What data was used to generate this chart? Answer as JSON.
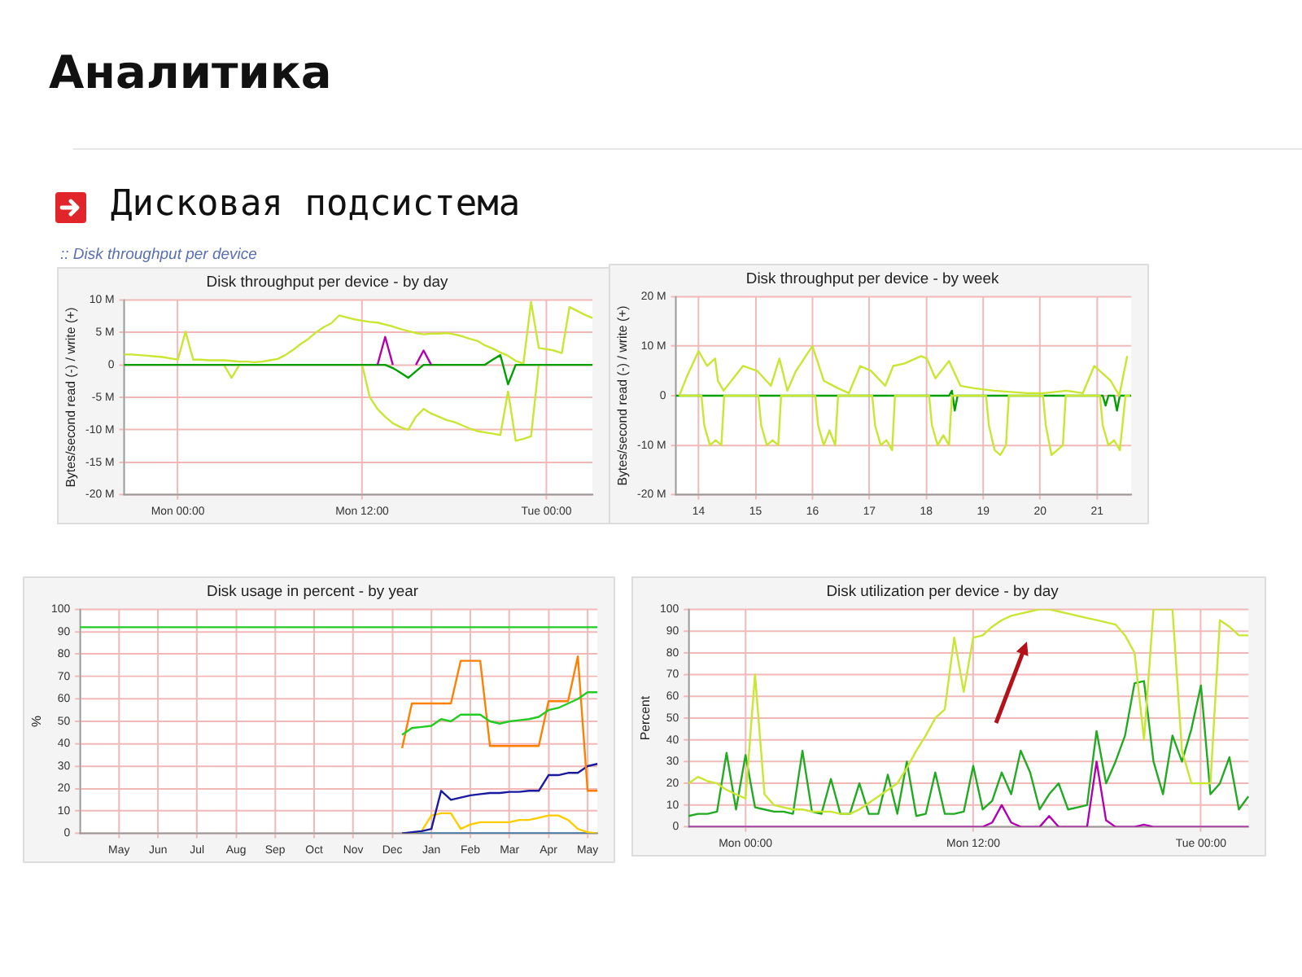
{
  "chart_data": [
    {
      "type": "other",
      "title": "Аналитика",
      "subtitle": "Дисковая подсистема"
    },
    {
      "type": "line",
      "title": "Disk throughput per device - by day",
      "subtitle": ":: Disk throughput per device",
      "ylabel": "Bytes/second read (-) / write (+)",
      "grid": true,
      "categories": [
        null,
        null,
        null,
        null,
        null,
        null,
        null,
        "Mon 00:00",
        null,
        null,
        null,
        null,
        null,
        null,
        null,
        null,
        null,
        null,
        null,
        null,
        null,
        null,
        null,
        null,
        null,
        null,
        null,
        null,
        null,
        null,
        null,
        "Mon 12:00",
        null,
        null,
        null,
        null,
        null,
        null,
        null,
        null,
        null,
        null,
        null,
        null,
        null,
        null,
        null,
        null,
        null,
        null,
        null,
        null,
        null,
        null,
        null,
        "Tue 00:00",
        null,
        null,
        null,
        null,
        null,
        null
      ],
      "ylim": [
        -20,
        10
      ],
      "yticks": [
        {
          "value": -20,
          "label": "-20 M"
        },
        {
          "value": -15,
          "label": "-15 M"
        },
        {
          "value": -10,
          "label": "-10 M"
        },
        {
          "value": -5,
          "label": "-5 M"
        },
        0,
        {
          "value": 5,
          "label": "5 M"
        },
        {
          "value": 10,
          "label": "10 M"
        }
      ],
      "series": [
        {
          "color": "#b000b0",
          "values": [
            null,
            null,
            null,
            null,
            null,
            null,
            null,
            null,
            null,
            null,
            null,
            null,
            null,
            null,
            null,
            null,
            null,
            null,
            null,
            null,
            null,
            null,
            null,
            null,
            null,
            null,
            null,
            null,
            null,
            null,
            null,
            null,
            null,
            0,
            4.3,
            0,
            null,
            null,
            0,
            2.2,
            0,
            null,
            null,
            null,
            null,
            null,
            null,
            null,
            null,
            null,
            null,
            null,
            null,
            null,
            null,
            null,
            null,
            null,
            null,
            null,
            null,
            null
          ]
        },
        {
          "color": "#00a000",
          "values": [
            0,
            0,
            0,
            0,
            0,
            0,
            0,
            0,
            0,
            0,
            0,
            0,
            0,
            0,
            0,
            0,
            0,
            0,
            0,
            0,
            0,
            0,
            0,
            0,
            0,
            0,
            0,
            0,
            0,
            0,
            0,
            0,
            0,
            0,
            0,
            -0.5,
            -1.2,
            -2,
            -1,
            0,
            0,
            0,
            0,
            0,
            0,
            0,
            0,
            0,
            0.8,
            1.5,
            -3,
            0,
            0,
            0,
            0,
            0,
            0,
            0,
            0,
            0,
            0,
            0
          ]
        },
        {
          "color": "#c8e632",
          "values": [
            1.6,
            1.6,
            1.5,
            1.4,
            1.3,
            1.2,
            1.0,
            0.8,
            5.1,
            0.8,
            0.8,
            0.7,
            0.7,
            0.7,
            0.6,
            0.5,
            0.5,
            0.4,
            0.5,
            0.7,
            0.9,
            1.5,
            2.3,
            3.2,
            4.0,
            5.0,
            5.8,
            6.4,
            7.6,
            7.3,
            7.0,
            6.8,
            6.6,
            6.5,
            6.2,
            5.9,
            5.5,
            5.2,
            4.9,
            4.7,
            4.8,
            4.8,
            4.9,
            4.7,
            4.4,
            4.0,
            3.7,
            3.0,
            2.5,
            1.9,
            1.4,
            0.6,
            0.2,
            9.7,
            2.6,
            2.4,
            2.2,
            1.8,
            8.9,
            8.3,
            7.7,
            7.2
          ]
        },
        {
          "color": "#c8e632",
          "values": [
            null,
            null,
            null,
            null,
            null,
            null,
            null,
            null,
            null,
            null,
            null,
            null,
            null,
            0,
            -2,
            0,
            null,
            null,
            null,
            null,
            null,
            null,
            null,
            null,
            null,
            null,
            null,
            null,
            null,
            null,
            null,
            0,
            -5,
            -6.8,
            -8,
            -9,
            -9.6,
            -10,
            -8,
            -6.8,
            -7.5,
            -8,
            -8.5,
            -8.8,
            -9.3,
            -9.8,
            -10.2,
            -10.4,
            -10.6,
            -10.8,
            -4.1,
            -11.7,
            -11.4,
            -11,
            0,
            null,
            null,
            null,
            null,
            null,
            null,
            null
          ]
        }
      ]
    },
    {
      "type": "line",
      "title": "Disk throughput per device - by week",
      "ylabel": "Bytes/second read (-) / write (+)",
      "grid": true,
      "xlim": [
        13.6,
        21.6
      ],
      "xticks": [
        14,
        15,
        16,
        17,
        18,
        19,
        20,
        21
      ],
      "ylim": [
        -20,
        20
      ],
      "yticks": [
        {
          "value": -20,
          "label": "-20 M"
        },
        {
          "value": -10,
          "label": "-10 M"
        },
        0,
        {
          "value": 10,
          "label": "10 M"
        },
        {
          "value": 20,
          "label": "20 M"
        }
      ],
      "series": [
        {
          "color": "#c8e632",
          "x": [
            13.66,
            13.8,
            14,
            14.15,
            14.29,
            14.34,
            14.44,
            14.78,
            15.03,
            15.27,
            15.42,
            15.56,
            15.71,
            16.0,
            16.2,
            16.45,
            16.64,
            16.84,
            17.03,
            17.28,
            17.42,
            17.62,
            17.91,
            18.01,
            18.16,
            18.4,
            18.6,
            18.84,
            19.19,
            19.77,
            20.07,
            20.46,
            20.75,
            20.95,
            21.24,
            21.39,
            21.53
          ],
          "values": [
            0,
            4,
            9,
            6,
            7.5,
            3,
            1,
            6,
            5,
            2,
            7.5,
            1,
            5,
            10,
            3,
            1.5,
            0.5,
            6,
            5,
            2,
            6,
            6.5,
            8,
            7.5,
            3.5,
            7,
            2,
            1.5,
            1,
            0.5,
            0.5,
            1,
            0.5,
            6,
            3,
            0,
            8
          ]
        },
        {
          "color": "#c8e632",
          "x": [
            13.66,
            14.05,
            14.1,
            14.2,
            14.3,
            14.4,
            14.45,
            15.05,
            15.1,
            15.2,
            15.3,
            15.4,
            15.45,
            16.05,
            16.1,
            16.2,
            16.3,
            16.4,
            16.45,
            17.05,
            17.1,
            17.2,
            17.3,
            17.4,
            17.45,
            18.05,
            18.1,
            18.2,
            18.3,
            18.4,
            18.45,
            19.05,
            19.1,
            19.2,
            19.3,
            19.4,
            19.45,
            20.05,
            20.1,
            20.2,
            20.3,
            20.4,
            20.45,
            21.05,
            21.1,
            21.2,
            21.3,
            21.4,
            21.5,
            21.58
          ],
          "values": [
            0,
            0,
            -6,
            -10,
            -9,
            -10,
            0,
            0,
            -6,
            -10,
            -9,
            -10,
            0,
            0,
            -6,
            -10,
            -7,
            -10,
            0,
            0,
            -6,
            -10,
            -9,
            -11,
            0,
            0,
            -6,
            -10,
            -8,
            -10,
            0,
            0,
            -6,
            -11,
            -12,
            -10,
            0,
            0,
            -6,
            -12,
            -11,
            -10,
            0,
            0,
            -6,
            -10,
            -9,
            -11,
            0,
            0
          ]
        },
        {
          "color": "#00a000",
          "x": [
            13.6,
            18.4,
            18.45,
            18.5,
            18.55,
            21.1,
            21.15,
            21.2,
            21.3,
            21.35,
            21.4,
            21.6
          ],
          "values": [
            0,
            0,
            1,
            -3,
            0,
            0,
            -2,
            0,
            0,
            -3,
            0,
            0
          ]
        }
      ]
    },
    {
      "type": "line",
      "title": "Disk usage in percent - by year",
      "ylabel": "%",
      "grid": true,
      "categories": [
        null,
        null,
        null,
        null,
        "May",
        null,
        null,
        null,
        "Jun",
        null,
        null,
        null,
        "Jul",
        null,
        null,
        null,
        "Aug",
        null,
        null,
        null,
        "Sep",
        null,
        null,
        null,
        "Oct",
        null,
        null,
        null,
        "Nov",
        null,
        null,
        null,
        "Dec",
        null,
        null,
        null,
        "Jan",
        null,
        null,
        null,
        "Feb",
        null,
        null,
        null,
        "Mar",
        null,
        null,
        null,
        "Apr",
        null,
        null,
        null,
        "May",
        null
      ],
      "ylim": [
        0,
        100
      ],
      "yticks": [
        0,
        10,
        20,
        30,
        40,
        50,
        60,
        70,
        80,
        90,
        100
      ],
      "series": [
        {
          "color": "#22cc22",
          "values": [
            92,
            92,
            92,
            92,
            92,
            92,
            92,
            92,
            92,
            92,
            92,
            92,
            92,
            92,
            92,
            92,
            92,
            92,
            92,
            92,
            92,
            92,
            92,
            92,
            92,
            92,
            92,
            92,
            92,
            92,
            92,
            92,
            92,
            92,
            92,
            92,
            92,
            92,
            92,
            92,
            92,
            92,
            92,
            92,
            92,
            92,
            92,
            92,
            92,
            92,
            92,
            92,
            92,
            92
          ]
        },
        {
          "color": "#22cc22",
          "values": [
            null,
            null,
            null,
            null,
            null,
            null,
            null,
            null,
            null,
            null,
            null,
            null,
            null,
            null,
            null,
            null,
            null,
            null,
            null,
            null,
            null,
            null,
            null,
            null,
            null,
            null,
            null,
            null,
            null,
            null,
            null,
            null,
            null,
            44,
            47,
            47.5,
            48,
            51,
            50,
            53,
            53,
            53,
            50,
            49,
            50,
            50.5,
            51,
            52,
            55,
            56,
            58,
            60,
            63,
            63
          ]
        },
        {
          "color": "#ff7f00",
          "values": [
            null,
            null,
            null,
            null,
            null,
            null,
            null,
            null,
            null,
            null,
            null,
            null,
            null,
            null,
            null,
            null,
            null,
            null,
            null,
            null,
            null,
            null,
            null,
            null,
            null,
            null,
            null,
            null,
            null,
            null,
            null,
            null,
            null,
            38,
            58,
            58,
            58,
            58,
            58,
            77,
            77,
            77,
            39,
            39,
            39,
            39,
            39,
            39,
            59,
            59,
            59,
            79,
            19,
            19
          ]
        },
        {
          "color": "#1a1aa0",
          "values": [
            null,
            null,
            null,
            null,
            null,
            null,
            null,
            null,
            null,
            null,
            null,
            null,
            null,
            null,
            null,
            null,
            null,
            null,
            null,
            null,
            null,
            null,
            null,
            null,
            null,
            null,
            null,
            null,
            null,
            null,
            null,
            null,
            null,
            0,
            0.5,
            1,
            2,
            19,
            15,
            16,
            17,
            17.5,
            18,
            18,
            18.5,
            18.5,
            19,
            19,
            26,
            26,
            27,
            27,
            30,
            31
          ]
        },
        {
          "color": "#ffcc00",
          "values": [
            null,
            null,
            null,
            null,
            null,
            null,
            null,
            null,
            null,
            null,
            null,
            null,
            null,
            null,
            null,
            null,
            null,
            null,
            null,
            null,
            null,
            null,
            null,
            null,
            null,
            null,
            null,
            null,
            null,
            null,
            null,
            null,
            null,
            0,
            0,
            1,
            8,
            9,
            9,
            2,
            4,
            5,
            5,
            5,
            5,
            6,
            6,
            7,
            8,
            8,
            6,
            2,
            0.5,
            0
          ]
        },
        {
          "color": "#0066b3",
          "values": [
            null,
            null,
            null,
            null,
            null,
            null,
            null,
            null,
            null,
            null,
            null,
            null,
            null,
            null,
            null,
            null,
            null,
            null,
            null,
            null,
            null,
            null,
            null,
            null,
            null,
            null,
            null,
            null,
            null,
            null,
            null,
            null,
            null,
            0,
            0,
            0,
            0,
            0,
            0,
            0,
            0,
            0,
            0,
            0,
            0,
            0,
            0,
            0,
            0,
            0,
            0,
            0,
            0,
            0
          ]
        }
      ]
    },
    {
      "type": "line",
      "title": "Disk utilization per device - by day",
      "ylabel": "Percent",
      "grid": true,
      "categories": [
        null,
        null,
        null,
        null,
        null,
        null,
        "Mon 00:00",
        null,
        null,
        null,
        null,
        null,
        null,
        null,
        null,
        null,
        null,
        null,
        null,
        null,
        null,
        null,
        null,
        null,
        null,
        null,
        null,
        null,
        null,
        null,
        "Mon 12:00",
        null,
        null,
        null,
        null,
        null,
        null,
        null,
        null,
        null,
        null,
        null,
        null,
        null,
        null,
        null,
        null,
        null,
        null,
        null,
        null,
        null,
        null,
        null,
        "Tue 00:00",
        null,
        null,
        null,
        null,
        null
      ],
      "ylim": [
        0,
        100
      ],
      "yticks": [
        0,
        10,
        20,
        30,
        40,
        50,
        60,
        70,
        80,
        90,
        100
      ],
      "series": [
        {
          "color": "#c8e632",
          "values": [
            20,
            23,
            21,
            20,
            17,
            15,
            13,
            70,
            15,
            10,
            9,
            8,
            8,
            7,
            7,
            7,
            6,
            6,
            8,
            11,
            14,
            17,
            20,
            27,
            35,
            42,
            50,
            54,
            87,
            62,
            87,
            88,
            92,
            95,
            97,
            98,
            99,
            100,
            100,
            99,
            98,
            97,
            96,
            95,
            94,
            93,
            88,
            80,
            40,
            100,
            100,
            100,
            35,
            20,
            20,
            20,
            95,
            92,
            88,
            88
          ]
        },
        {
          "color": "#22aa22",
          "values": [
            5,
            6,
            6,
            7,
            34,
            8,
            33,
            9,
            8,
            7,
            7,
            6,
            35,
            7,
            6,
            22,
            6,
            6,
            20,
            6,
            6,
            24,
            6,
            30,
            5,
            6,
            25,
            6,
            6,
            7,
            28,
            8,
            12,
            25,
            15,
            35,
            25,
            8,
            15,
            20,
            8,
            9,
            10,
            44,
            20,
            30,
            42,
            66,
            67,
            30,
            15,
            42,
            30,
            45,
            65,
            15,
            20,
            32,
            8,
            14
          ]
        },
        {
          "color": "#b000b0",
          "values": [
            0,
            0,
            0,
            0,
            0,
            0,
            0,
            0,
            0,
            0,
            0,
            0,
            0,
            0,
            0,
            0,
            0,
            0,
            0,
            0,
            0,
            0,
            0,
            0,
            0,
            0,
            0,
            0,
            0,
            0,
            0,
            0,
            2,
            10,
            2,
            0,
            0,
            0,
            5,
            0,
            0,
            0,
            0,
            30,
            3,
            0,
            0,
            0,
            1,
            0,
            0,
            0,
            0,
            0,
            0,
            0,
            0,
            0,
            0,
            0
          ]
        }
      ]
    }
  ]
}
